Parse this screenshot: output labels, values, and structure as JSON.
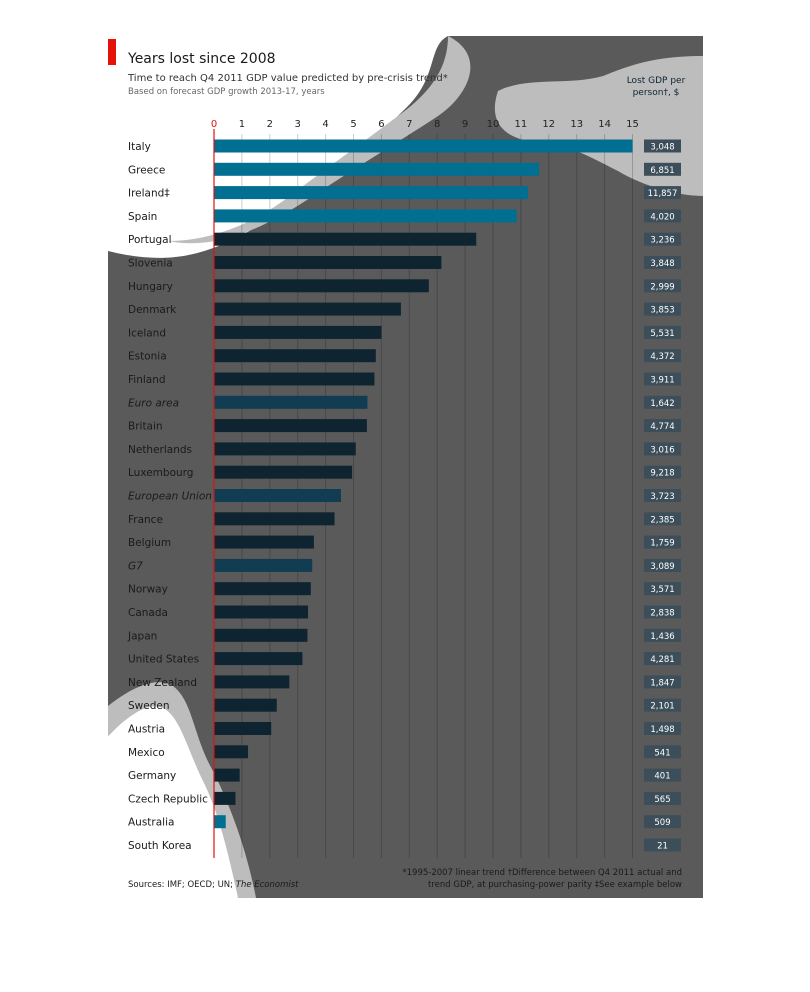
{
  "chart_data": {
    "type": "bar",
    "orientation": "horizontal",
    "title": "Years lost since 2008",
    "subtitle": "Time to reach Q4 2011 GDP value predicted by pre-crisis trend*",
    "subtitle2": "Based on forecast GDP growth 2013-17, years",
    "right_header_line1": "Lost GDP per",
    "right_header_line2": "person†, $",
    "xlim": [
      0,
      15
    ],
    "x_ticks": [
      "0",
      "1",
      "2",
      "3",
      "4",
      "5",
      "6",
      "7",
      "8",
      "9",
      "10",
      "11",
      "12",
      "13",
      "14",
      "15"
    ],
    "categories": [
      "Italy",
      "Greece",
      "Ireland‡",
      "Spain",
      "Portugal",
      "Slovenia",
      "Hungary",
      "Denmark",
      "Iceland",
      "Estonia",
      "Finland",
      "Euro area",
      "Britain",
      "Netherlands",
      "Luxembourg",
      "European Union",
      "France",
      "Belgium",
      "G7",
      "Norway",
      "Canada",
      "Japan",
      "United States",
      "New Zealand",
      "Sweden",
      "Austria",
      "Mexico",
      "Germany",
      "Czech Republic",
      "Australia",
      "South Korea"
    ],
    "aggregates": [
      "Euro area",
      "European Union",
      "G7"
    ],
    "values": [
      15,
      11.65,
      11.25,
      10.85,
      9.4,
      8.15,
      7.7,
      6.7,
      6.0,
      5.8,
      5.75,
      5.5,
      5.48,
      5.08,
      4.95,
      4.55,
      4.32,
      3.58,
      3.52,
      3.47,
      3.37,
      3.35,
      3.17,
      2.7,
      2.25,
      2.05,
      1.22,
      0.92,
      0.77,
      0.42,
      0
    ],
    "lost_gdp_per_person": [
      "3,048",
      "6,851",
      "11,857",
      "4,020",
      "3,236",
      "3,848",
      "2,999",
      "3,853",
      "5,531",
      "4,372",
      "3,911",
      "1,642",
      "4,774",
      "3,016",
      "9,218",
      "3,723",
      "2,385",
      "1,759",
      "3,089",
      "3,571",
      "2,838",
      "1,436",
      "4,281",
      "1,847",
      "2,101",
      "1,498",
      "541",
      "401",
      "565",
      "509",
      "21"
    ],
    "footnote_line1": "*1995-2007 linear trend   †Difference between Q4 2011 actual and",
    "footnote_line2": "trend GDP, at purchasing-power parity   ‡See example below",
    "source": "Sources: IMF; OECD; UN; ",
    "source_italic": "The Economist",
    "colors": {
      "accent_red": "#e3120b",
      "bar_highlight": "#006f91",
      "bar_dark": "#0e2431",
      "bar_aggregate": "#113c52",
      "background_gray": "#5a5a5a",
      "overlay_light": "#bdbdbd",
      "value_box": "#3c4e59"
    }
  }
}
